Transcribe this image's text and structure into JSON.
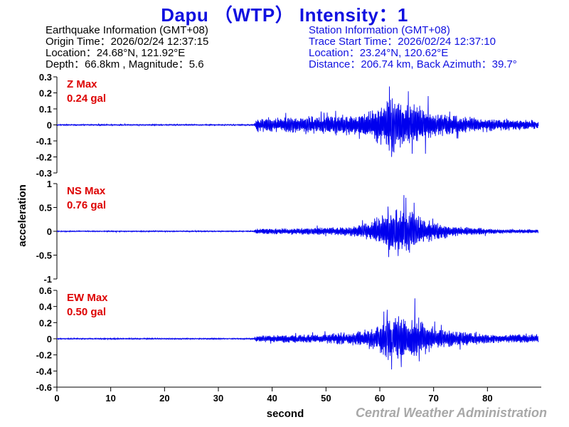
{
  "title": "Dapu （WTP） Intensity：1",
  "earthquake_info": {
    "heading": "Earthquake Information  (GMT+08)",
    "origin_time": "Origin Time：2026/02/24 12:37:15",
    "location": "Location：24.68°N, 121.92°E",
    "depth_magnitude": "Depth：66.8km , Magnitude：5.6"
  },
  "station_info": {
    "heading": "Station Information  (GMT+08)",
    "trace_start": "Trace Start Time：2026/02/24 12:37:10",
    "location": "Location：23.24°N, 120.62°E",
    "distance": "Distance：206.74 km, Back Azimuth：39.7°"
  },
  "watermark": "Central Weather Administration",
  "colors": {
    "title": "#1010e0",
    "trace": "#0000ee",
    "max_label": "#dd0000",
    "axis": "#000000",
    "watermark": "#a8a8a8"
  },
  "chart_data": {
    "type": "line",
    "xlabel": "second",
    "ylabel": "acceleration",
    "xlim": [
      0,
      90
    ],
    "xticks": [
      0,
      10,
      20,
      30,
      40,
      50,
      60,
      70,
      80
    ],
    "panels": [
      {
        "name": "Z",
        "max_label": "Z Max",
        "max_value": "0.24 gal",
        "ylim": [
          -0.3,
          0.3
        ],
        "yticks": [
          0.3,
          0.2,
          0.1,
          0,
          -0.1,
          -0.2,
          -0.3
        ],
        "ytick_labels": [
          "0.3",
          "0.2",
          "0.1",
          "0",
          "-0.1",
          "-0.2",
          "-0.3"
        ],
        "envelope": [
          [
            0,
            0.004
          ],
          [
            36.5,
            0.004
          ],
          [
            37.2,
            0.05
          ],
          [
            42,
            0.05
          ],
          [
            50,
            0.06
          ],
          [
            57,
            0.08
          ],
          [
            59.5,
            0.12
          ],
          [
            62,
            0.19
          ],
          [
            63.5,
            0.17
          ],
          [
            66,
            0.14
          ],
          [
            69,
            0.1
          ],
          [
            73,
            0.07
          ],
          [
            80,
            0.04
          ],
          [
            90,
            0.03
          ]
        ],
        "peaks": [
          [
            61.8,
            0.24
          ],
          [
            62.2,
            -0.2
          ],
          [
            65.3,
            0.21
          ],
          [
            66.0,
            -0.18
          ],
          [
            69.0,
            0.18
          ],
          [
            68.5,
            -0.18
          ]
        ]
      },
      {
        "name": "NS",
        "max_label": "NS Max",
        "max_value": "0.76 gal",
        "ylim": [
          -1,
          1
        ],
        "yticks": [
          1,
          0.5,
          0,
          -0.5,
          -1
        ],
        "ytick_labels": [
          "1",
          "0.5",
          "0",
          "-0.5",
          "-1"
        ],
        "envelope": [
          [
            0,
            0.012
          ],
          [
            36.5,
            0.012
          ],
          [
            37.2,
            0.06
          ],
          [
            45,
            0.07
          ],
          [
            54,
            0.1
          ],
          [
            58,
            0.2
          ],
          [
            61,
            0.4
          ],
          [
            63,
            0.55
          ],
          [
            65,
            0.5
          ],
          [
            67,
            0.35
          ],
          [
            70,
            0.2
          ],
          [
            75,
            0.1
          ],
          [
            82,
            0.05
          ],
          [
            90,
            0.04
          ]
        ],
        "peaks": [
          [
            64.5,
            0.76
          ],
          [
            63.4,
            -0.52
          ],
          [
            61.5,
            0.52
          ],
          [
            65.5,
            -0.45
          ]
        ]
      },
      {
        "name": "EW",
        "max_label": "EW Max",
        "max_value": "0.50 gal",
        "ylim": [
          -0.6,
          0.6
        ],
        "yticks": [
          0.6,
          0.4,
          0.2,
          0,
          -0.2,
          -0.4,
          -0.6
        ],
        "ytick_labels": [
          "0.6",
          "0.4",
          "0.2",
          "0",
          "-0.2",
          "-0.4",
          "-0.6"
        ],
        "envelope": [
          [
            0,
            0.008
          ],
          [
            36.5,
            0.008
          ],
          [
            37.2,
            0.04
          ],
          [
            42,
            0.05
          ],
          [
            50,
            0.06
          ],
          [
            57,
            0.1
          ],
          [
            60,
            0.2
          ],
          [
            62,
            0.3
          ],
          [
            64,
            0.28
          ],
          [
            67,
            0.25
          ],
          [
            70,
            0.15
          ],
          [
            74,
            0.1
          ],
          [
            80,
            0.06
          ],
          [
            90,
            0.05
          ]
        ],
        "peaks": [
          [
            66.5,
            0.5
          ],
          [
            62.2,
            -0.38
          ],
          [
            61.4,
            0.36
          ],
          [
            64.0,
            -0.35
          ]
        ]
      }
    ]
  }
}
